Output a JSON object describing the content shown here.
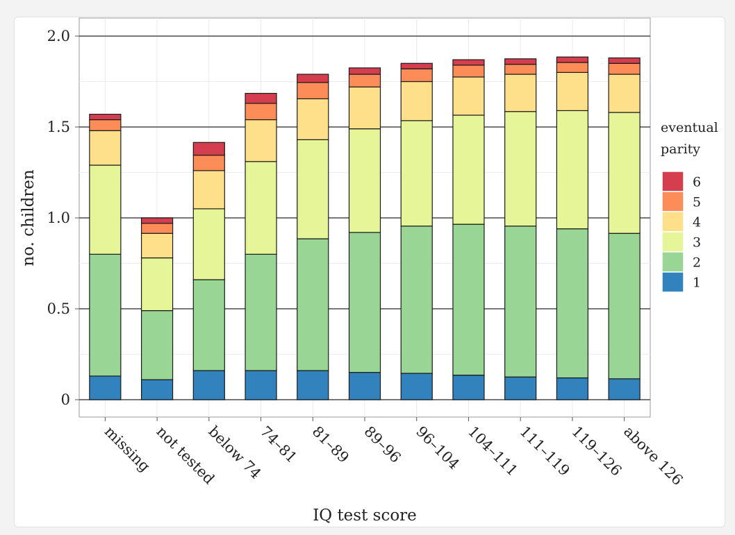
{
  "chart_data": {
    "type": "bar",
    "stacked": true,
    "xlabel": "IQ test score",
    "ylabel": "no. children",
    "ylim": [
      -0.1,
      2.1
    ],
    "yticks": [
      0,
      0.5,
      1.0,
      1.5,
      2.0
    ],
    "ytick_labels": [
      "0",
      "0.5",
      "1.0",
      "1.5",
      "2.0"
    ],
    "categories": [
      "missing",
      "not tested",
      "below 74",
      "74–81",
      "81–89",
      "89–96",
      "96–104",
      "104–111",
      "111–119",
      "119–126",
      "above 126"
    ],
    "legend": {
      "title_line1": "eventual",
      "title_line2": "parity",
      "placement": "right"
    },
    "series": [
      {
        "name": "1",
        "color": "#3182bd",
        "values": [
          0.13,
          0.11,
          0.16,
          0.16,
          0.16,
          0.15,
          0.145,
          0.135,
          0.125,
          0.12,
          0.115
        ]
      },
      {
        "name": "2",
        "color": "#99d594",
        "values": [
          0.67,
          0.38,
          0.5,
          0.64,
          0.725,
          0.77,
          0.81,
          0.83,
          0.83,
          0.82,
          0.8
        ]
      },
      {
        "name": "3",
        "color": "#e6f598",
        "values": [
          0.49,
          0.29,
          0.39,
          0.51,
          0.545,
          0.57,
          0.58,
          0.6,
          0.63,
          0.65,
          0.665
        ]
      },
      {
        "name": "4",
        "color": "#fee08b",
        "values": [
          0.19,
          0.135,
          0.21,
          0.23,
          0.225,
          0.23,
          0.215,
          0.21,
          0.205,
          0.21,
          0.21
        ]
      },
      {
        "name": "5",
        "color": "#fc8d59",
        "values": [
          0.06,
          0.055,
          0.085,
          0.09,
          0.09,
          0.07,
          0.07,
          0.065,
          0.055,
          0.055,
          0.06
        ]
      },
      {
        "name": "6",
        "color": "#d53e4f",
        "values": [
          0.03,
          0.03,
          0.07,
          0.055,
          0.045,
          0.035,
          0.03,
          0.03,
          0.03,
          0.03,
          0.03
        ]
      }
    ]
  }
}
